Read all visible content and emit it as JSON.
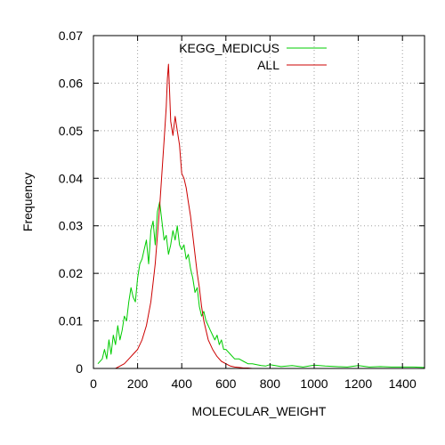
{
  "chart_data": {
    "type": "line",
    "title": "",
    "xlabel": "MOLECULAR_WEIGHT",
    "ylabel": "Frequency",
    "xlim": [
      0,
      1500
    ],
    "ylim": [
      0,
      0.07
    ],
    "x_ticks": [
      0,
      200,
      400,
      600,
      800,
      1000,
      1200,
      1400
    ],
    "y_ticks": [
      0,
      0.01,
      0.02,
      0.03,
      0.04,
      0.05,
      0.06,
      0.07
    ],
    "x_tick_labels": [
      "0",
      "200",
      "400",
      "600",
      "800",
      "1000",
      "1200",
      "1400"
    ],
    "y_tick_labels": [
      "0",
      "0.01",
      "0.02",
      "0.03",
      "0.04",
      "0.05",
      "0.06",
      "0.07"
    ],
    "grid": true,
    "legend_position": "top-center",
    "series": [
      {
        "name": "KEGG_MEDICUS",
        "color": "#00cc00",
        "x": [
          20,
          40,
          50,
          60,
          70,
          80,
          90,
          100,
          110,
          120,
          130,
          140,
          150,
          160,
          170,
          180,
          190,
          200,
          210,
          220,
          230,
          240,
          250,
          260,
          270,
          280,
          290,
          300,
          310,
          320,
          330,
          340,
          350,
          360,
          370,
          380,
          390,
          400,
          410,
          420,
          430,
          440,
          450,
          460,
          470,
          480,
          490,
          500,
          510,
          520,
          530,
          540,
          550,
          560,
          570,
          580,
          590,
          600,
          620,
          640,
          660,
          680,
          700,
          720,
          740,
          760,
          780,
          800,
          850,
          900,
          950,
          1000,
          1050,
          1100,
          1150,
          1200,
          1250,
          1300,
          1350,
          1400,
          1450,
          1500
        ],
        "y": [
          0.001,
          0.002,
          0.004,
          0.002,
          0.006,
          0.003,
          0.007,
          0.005,
          0.009,
          0.006,
          0.008,
          0.011,
          0.01,
          0.014,
          0.017,
          0.015,
          0.014,
          0.019,
          0.022,
          0.023,
          0.025,
          0.027,
          0.022,
          0.029,
          0.031,
          0.026,
          0.033,
          0.035,
          0.031,
          0.027,
          0.028,
          0.024,
          0.026,
          0.029,
          0.027,
          0.03,
          0.026,
          0.025,
          0.026,
          0.023,
          0.024,
          0.021,
          0.019,
          0.016,
          0.017,
          0.013,
          0.011,
          0.012,
          0.01,
          0.009,
          0.008,
          0.007,
          0.006,
          0.007,
          0.005,
          0.006,
          0.004,
          0.004,
          0.003,
          0.002,
          0.002,
          0.0015,
          0.001,
          0.001,
          0.0008,
          0.0006,
          0.0005,
          0.0008,
          0.0004,
          0.0006,
          0.0003,
          0.0007,
          0.0005,
          0.0004,
          0.0003,
          0.0006,
          0.0003,
          0.0004,
          0.0003,
          0.0003,
          0.0003,
          0.0002
        ]
      },
      {
        "name": "ALL",
        "color": "#cc0000",
        "x": [
          100,
          120,
          140,
          160,
          180,
          200,
          220,
          240,
          260,
          270,
          280,
          290,
          300,
          310,
          320,
          330,
          335,
          340,
          345,
          350,
          360,
          370,
          380,
          390,
          400,
          410,
          420,
          430,
          440,
          450,
          460,
          470,
          480,
          490,
          500,
          510,
          520,
          540,
          560,
          580,
          600,
          620,
          640,
          660,
          680,
          700,
          720
        ],
        "y": [
          0.0,
          0.0005,
          0.001,
          0.002,
          0.003,
          0.004,
          0.006,
          0.009,
          0.014,
          0.018,
          0.022,
          0.028,
          0.034,
          0.041,
          0.048,
          0.055,
          0.061,
          0.064,
          0.058,
          0.052,
          0.049,
          0.053,
          0.05,
          0.047,
          0.041,
          0.04,
          0.038,
          0.035,
          0.032,
          0.028,
          0.024,
          0.02,
          0.017,
          0.013,
          0.01,
          0.008,
          0.006,
          0.004,
          0.0025,
          0.0015,
          0.001,
          0.0005,
          0.0003,
          0.0002,
          0.0001,
          0.0001,
          0.0
        ]
      }
    ]
  }
}
